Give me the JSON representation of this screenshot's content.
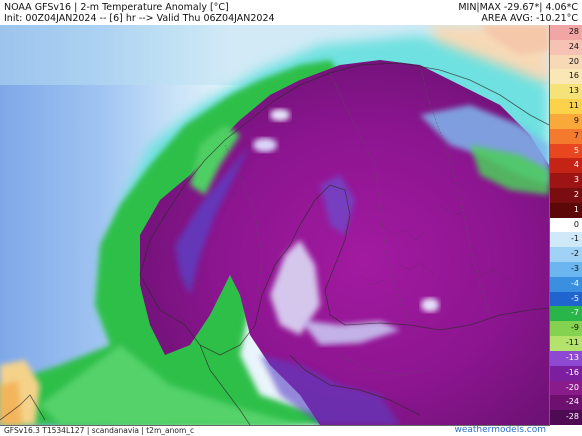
{
  "header": {
    "title": "NOAA GFSv16 | 2-m Temperature Anomaly [°C]",
    "init": "Init: 00Z04JAN2024 -- [6] hr --> Valid Thu 06Z04JAN2024",
    "minmax": "MIN|MAX -29.67*| 4.06*C",
    "area_avg": "AREA AVG: -10.21°C"
  },
  "colorbar": {
    "labels": [
      "28",
      "24",
      "20",
      "16",
      "13",
      "11",
      "9",
      "7",
      "5",
      "4",
      "3",
      "2",
      "1",
      "0",
      "-1",
      "-2",
      "-3",
      "-4",
      "-5",
      "-7",
      "-9",
      "-11",
      "-13",
      "-16",
      "-20",
      "-24",
      "-28"
    ],
    "colors": [
      "#f1a5a5",
      "#f6c2b4",
      "#f7d9b6",
      "#fbe7b6",
      "#f5e37a",
      "#fbd24a",
      "#f9a93a",
      "#f47a2e",
      "#e8461e",
      "#c62317",
      "#9d1414",
      "#7a0d10",
      "#5c0808",
      "#ffffff",
      "#cfe9f9",
      "#9fd2f5",
      "#6cb6ef",
      "#3a8fe1",
      "#1f64cf",
      "#2ab54a",
      "#84d24f",
      "#b3e36a",
      "#8e49d2",
      "#7b1fa0",
      "#8a1b8a",
      "#6d1070",
      "#4e0a52"
    ]
  },
  "footer": {
    "left": "GFSv16.3 T1534L127 | scandanavia | t2m_anom_c",
    "right": "weathermodels.com"
  }
}
